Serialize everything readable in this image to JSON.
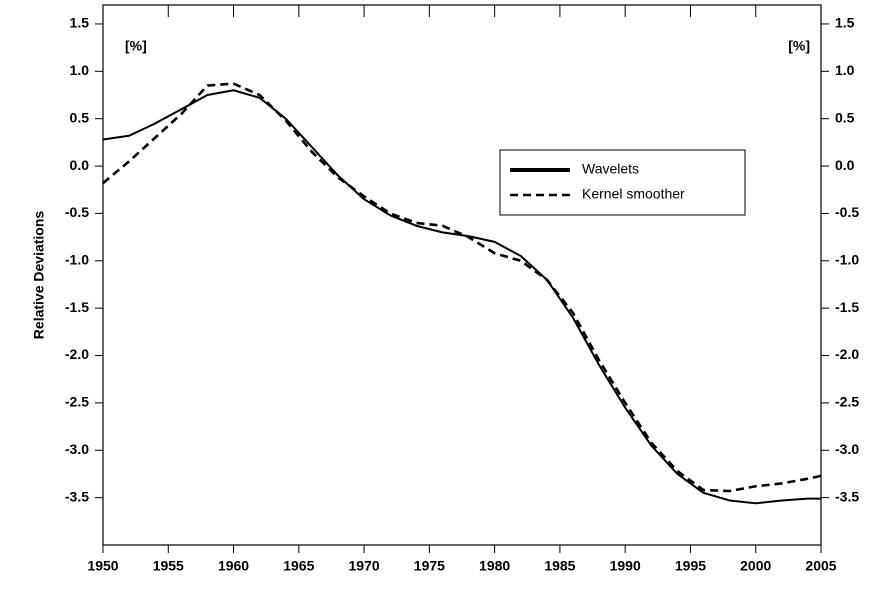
{
  "chart_data": {
    "type": "line",
    "ylabel": "Relative Deviations",
    "annotations": [
      "[%]",
      "[%]"
    ],
    "x": [
      1950,
      1952,
      1954,
      1956,
      1958,
      1960,
      1962,
      1964,
      1966,
      1968,
      1970,
      1972,
      1974,
      1976,
      1978,
      1980,
      1982,
      1984,
      1986,
      1988,
      1990,
      1992,
      1994,
      1996,
      1998,
      2000,
      2002,
      2004,
      2005
    ],
    "series": [
      {
        "name": "Wavelets",
        "color": "#000000",
        "dash": "solid",
        "values": [
          0.28,
          0.32,
          0.45,
          0.6,
          0.75,
          0.8,
          0.72,
          0.5,
          0.2,
          -0.1,
          -0.35,
          -0.52,
          -0.63,
          -0.7,
          -0.74,
          -0.8,
          -0.95,
          -1.2,
          -1.6,
          -2.1,
          -2.55,
          -2.95,
          -3.25,
          -3.45,
          -3.53,
          -3.56,
          -3.53,
          -3.51,
          -3.51
        ]
      },
      {
        "name": "Kernel smoother",
        "color": "#000000",
        "dash": "dashed",
        "values": [
          -0.18,
          0.05,
          0.3,
          0.55,
          0.85,
          0.87,
          0.75,
          0.48,
          0.15,
          -0.12,
          -0.32,
          -0.5,
          -0.6,
          -0.63,
          -0.75,
          -0.92,
          -1.0,
          -1.2,
          -1.55,
          -2.05,
          -2.5,
          -2.92,
          -3.22,
          -3.42,
          -3.43,
          -3.38,
          -3.35,
          -3.3,
          -3.27
        ]
      }
    ],
    "xlim": [
      1950,
      2005
    ],
    "xticks": [
      1950,
      1955,
      1960,
      1965,
      1970,
      1975,
      1980,
      1985,
      1990,
      1995,
      2000,
      2005
    ],
    "ylim": [
      -4.0,
      1.7
    ],
    "yticks": [
      1.5,
      {
        "value": 1,
        "label": "1.0"
      },
      0.5,
      {
        "value": 0,
        "label": "0.0"
      },
      -0.5,
      {
        "value": -1,
        "label": "-1.0"
      },
      -1.5,
      {
        "value": -2,
        "label": "-2.0"
      },
      -2.5,
      {
        "value": -3,
        "label": "-3.0"
      },
      -3.5
    ],
    "grid": false
  }
}
